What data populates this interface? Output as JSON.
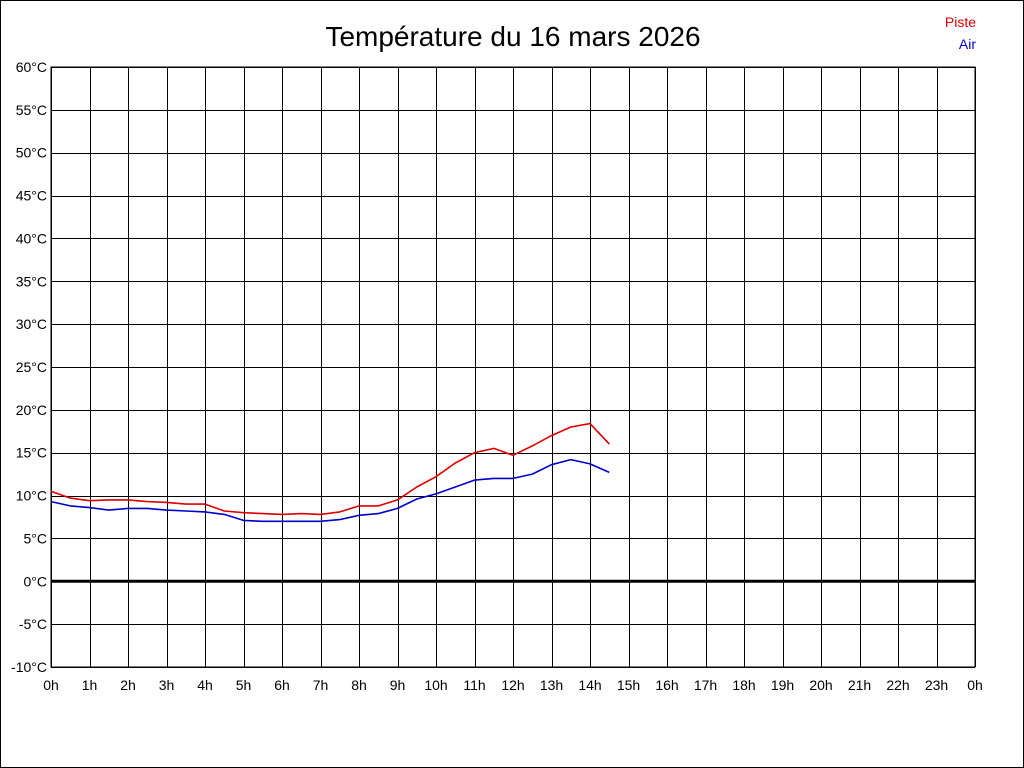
{
  "chart_data": {
    "type": "line",
    "title": "Température du 16 mars 2026",
    "xlabel": "",
    "ylabel": "",
    "x_ticks": [
      "0h",
      "1h",
      "2h",
      "3h",
      "4h",
      "5h",
      "6h",
      "7h",
      "8h",
      "9h",
      "10h",
      "11h",
      "12h",
      "13h",
      "14h",
      "15h",
      "16h",
      "17h",
      "18h",
      "19h",
      "20h",
      "21h",
      "22h",
      "23h",
      "0h"
    ],
    "y_ticks": [
      "60°C",
      "55°C",
      "50°C",
      "45°C",
      "40°C",
      "35°C",
      "30°C",
      "25°C",
      "20°C",
      "15°C",
      "10°C",
      "5°C",
      "0°C",
      "-5°C",
      "-10°C"
    ],
    "xlim": [
      0,
      24
    ],
    "ylim": [
      -10,
      60
    ],
    "grid": true,
    "legend_position": "top-right",
    "zero_line": true,
    "series": [
      {
        "name": "Piste",
        "color": "#dd0000",
        "x": [
          0,
          0.5,
          1,
          1.5,
          2,
          2.5,
          3,
          3.5,
          4,
          4.5,
          5,
          5.5,
          6,
          6.5,
          7,
          7.5,
          8,
          8.5,
          9,
          9.5,
          10,
          10.5,
          11,
          11.5,
          12,
          12.5,
          13,
          13.5,
          14,
          14.5
        ],
        "y": [
          10.5,
          9.7,
          9.4,
          9.5,
          9.5,
          9.3,
          9.2,
          9.0,
          9.0,
          8.2,
          8.0,
          7.9,
          7.8,
          7.9,
          7.8,
          8.1,
          8.8,
          8.8,
          9.5,
          11.0,
          12.2,
          13.8,
          15.0,
          15.5,
          14.7,
          15.8,
          17.0,
          18.0,
          18.4,
          16.0
        ]
      },
      {
        "name": "Air",
        "color": "#0000cc",
        "x": [
          0,
          0.5,
          1,
          1.5,
          2,
          2.5,
          3,
          3.5,
          4,
          4.5,
          5,
          5.5,
          6,
          6.5,
          7,
          7.5,
          8,
          8.5,
          9,
          9.5,
          10,
          10.5,
          11,
          11.5,
          12,
          12.5,
          13,
          13.5,
          14,
          14.5
        ],
        "y": [
          9.3,
          8.8,
          8.6,
          8.3,
          8.5,
          8.5,
          8.3,
          8.2,
          8.1,
          7.8,
          7.1,
          7.0,
          7.0,
          7.0,
          7.0,
          7.2,
          7.7,
          7.9,
          8.5,
          9.6,
          10.2,
          11.0,
          11.8,
          12.0,
          12.0,
          12.5,
          13.6,
          14.2,
          13.7,
          12.7
        ]
      }
    ]
  }
}
